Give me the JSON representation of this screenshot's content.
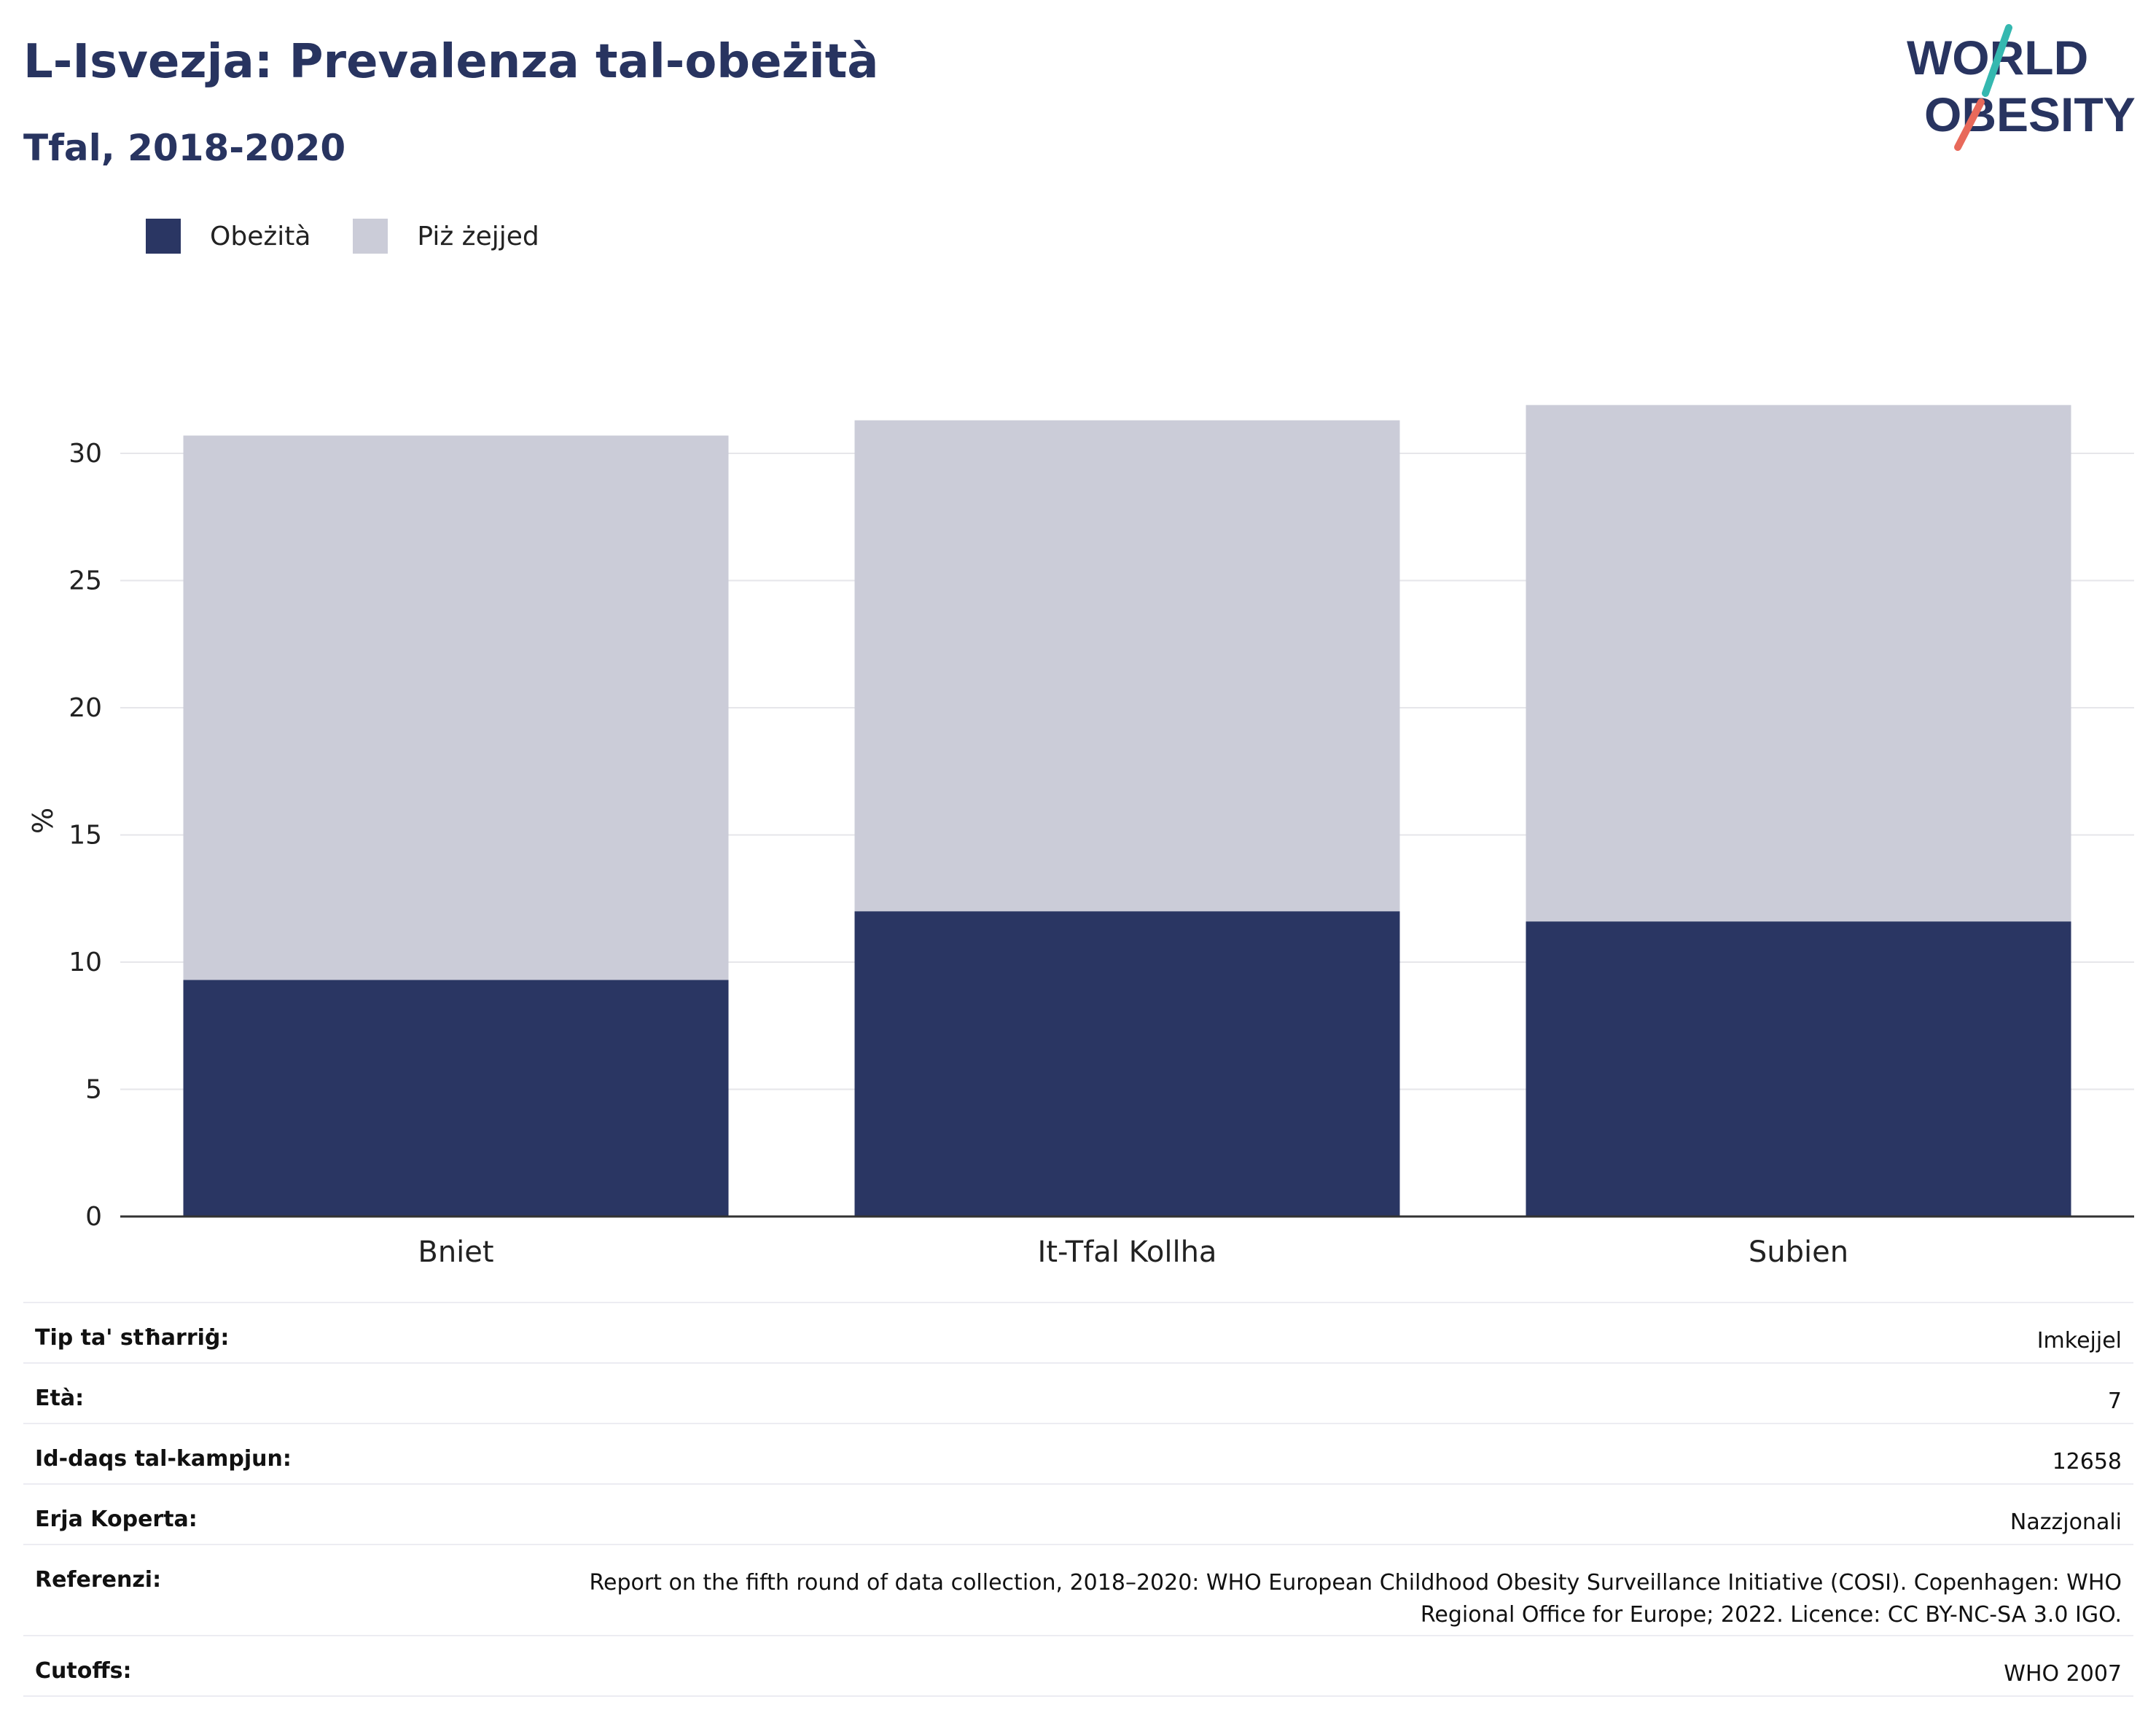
{
  "title": "L-Isvezja: Prevalenza tal-obeżità",
  "subtitle": "Tfal, 2018-2020",
  "logo": {
    "line1": "WORLD",
    "line2": "OBESITY"
  },
  "colors": {
    "obesity": "#2a3663",
    "overweight": "#cbccd8",
    "text": "#283460",
    "grid": "#e6e6ea",
    "axis": "#333333"
  },
  "legend": {
    "placement": "top-left",
    "items": [
      {
        "label": "Obeżità"
      },
      {
        "label": "Piż żejjed"
      }
    ]
  },
  "chart_data": {
    "type": "bar",
    "stacked": true,
    "categories": [
      "Bniet",
      "It-Tfal Kollha",
      "Subien"
    ],
    "series": [
      {
        "name": "Obeżità",
        "values": [
          9.3,
          12.0,
          11.6
        ]
      },
      {
        "name": "Piż żejjed",
        "values": [
          21.4,
          19.3,
          20.3
        ]
      }
    ],
    "ylabel": "%",
    "ylim": [
      0,
      32
    ],
    "yticks": [
      0,
      5,
      10,
      15,
      20,
      25,
      30
    ],
    "grid": true
  },
  "meta": [
    {
      "label": "Tip ta' stħarriġ:",
      "value": "Imkejjel"
    },
    {
      "label": "Età:",
      "value": "7"
    },
    {
      "label": "Id-daqs tal-kampjun:",
      "value": "12658"
    },
    {
      "label": "Erja Koperta:",
      "value": "Nazzjonali"
    },
    {
      "label": "Referenzi:",
      "value": "Report on the fifth round of data collection, 2018–2020: WHO European Childhood Obesity Surveillance Initiative (COSI). Copenhagen: WHO Regional Office for Europe; 2022. Licence: CC BY-NC-SA 3.0 IGO."
    },
    {
      "label": "Cutoffs:",
      "value": "WHO 2007"
    }
  ]
}
